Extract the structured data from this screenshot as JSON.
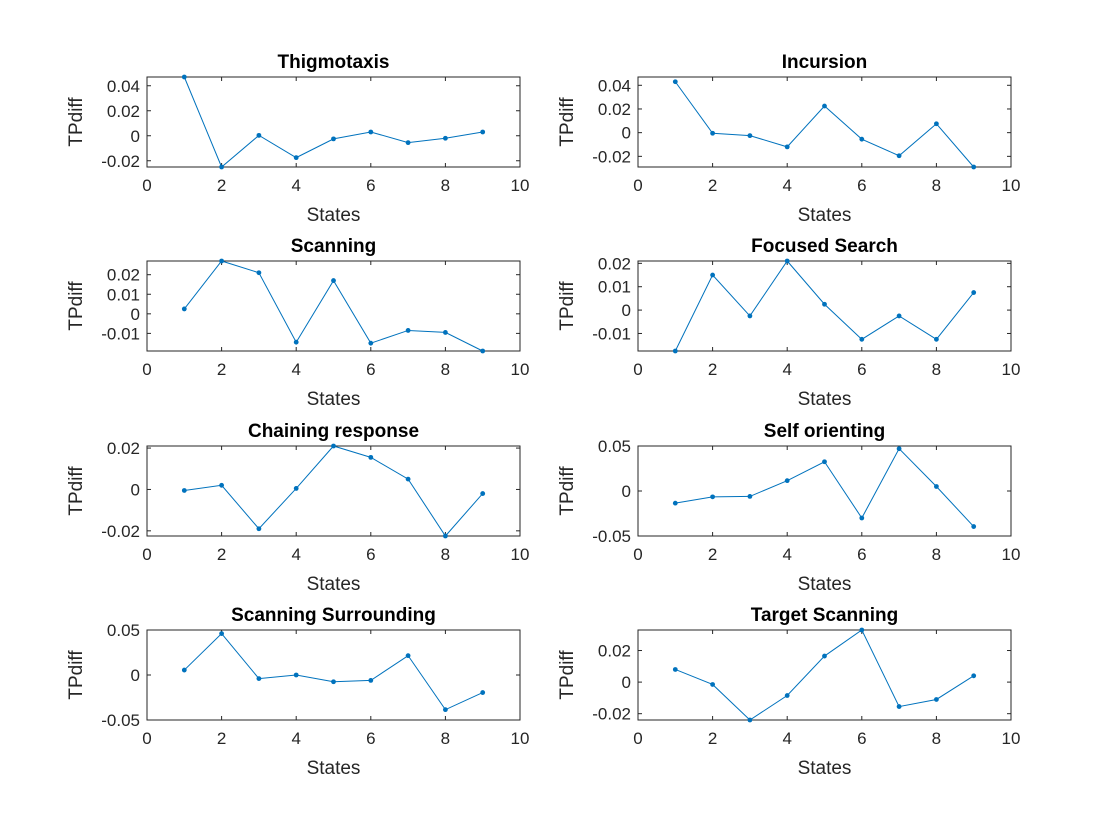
{
  "chart_data": [
    {
      "type": "line",
      "title": "Thigmotaxis",
      "xlabel": "States",
      "ylabel": "TPdiff",
      "xlim": [
        0,
        10
      ],
      "ylim": [
        -0.025,
        0.047
      ],
      "x_ticks": [
        0,
        2,
        4,
        6,
        8,
        10
      ],
      "y_ticks": [
        -0.02,
        0,
        0.02,
        0.04
      ],
      "x": [
        1,
        2,
        3,
        4,
        5,
        6,
        7,
        8,
        9
      ],
      "series": [
        {
          "values": [
            0.047,
            -0.025,
            0.0003,
            -0.0175,
            -0.0025,
            0.003,
            -0.0055,
            -0.002,
            0.003
          ]
        }
      ],
      "color": "#0072BD",
      "grid": false
    },
    {
      "type": "line",
      "title": "Incursion",
      "xlabel": "States",
      "ylabel": "TPdiff",
      "xlim": [
        0,
        10
      ],
      "ylim": [
        -0.029,
        0.047
      ],
      "x_ticks": [
        0,
        2,
        4,
        6,
        8,
        10
      ],
      "y_ticks": [
        -0.02,
        0,
        0.02,
        0.04
      ],
      "x": [
        1,
        2,
        3,
        4,
        5,
        6,
        7,
        8,
        9
      ],
      "series": [
        {
          "values": [
            0.043,
            -0.0005,
            -0.0025,
            -0.012,
            0.0225,
            -0.0055,
            -0.0195,
            0.0075,
            -0.029
          ]
        }
      ],
      "color": "#0072BD",
      "grid": false
    },
    {
      "type": "line",
      "title": "Scanning",
      "xlabel": "States",
      "ylabel": "TPdiff",
      "xlim": [
        0,
        10
      ],
      "ylim": [
        -0.019,
        0.027
      ],
      "x_ticks": [
        0,
        2,
        4,
        6,
        8,
        10
      ],
      "y_ticks": [
        -0.01,
        0,
        0.01,
        0.02
      ],
      "x": [
        1,
        2,
        3,
        4,
        5,
        6,
        7,
        8,
        9
      ],
      "series": [
        {
          "values": [
            0.0025,
            0.027,
            0.021,
            -0.0145,
            0.017,
            -0.015,
            -0.0085,
            -0.0095,
            -0.019
          ]
        }
      ],
      "color": "#0072BD",
      "grid": false
    },
    {
      "type": "line",
      "title": "Focused Search",
      "xlabel": "States",
      "ylabel": "TPdiff",
      "xlim": [
        0,
        10
      ],
      "ylim": [
        -0.0175,
        0.021
      ],
      "x_ticks": [
        0,
        2,
        4,
        6,
        8,
        10
      ],
      "y_ticks": [
        -0.01,
        0,
        0.01,
        0.02
      ],
      "x": [
        1,
        2,
        3,
        4,
        5,
        6,
        7,
        8,
        9
      ],
      "series": [
        {
          "values": [
            -0.0175,
            0.015,
            -0.0025,
            0.021,
            0.0025,
            -0.0125,
            -0.0025,
            -0.0125,
            0.0075
          ]
        }
      ],
      "color": "#0072BD",
      "grid": false
    },
    {
      "type": "line",
      "title": "Chaining response",
      "xlabel": "States",
      "ylabel": "TPdiff",
      "xlim": [
        0,
        10
      ],
      "ylim": [
        -0.0225,
        0.021
      ],
      "x_ticks": [
        0,
        2,
        4,
        6,
        8,
        10
      ],
      "y_ticks": [
        -0.02,
        0,
        0.02
      ],
      "x": [
        1,
        2,
        3,
        4,
        5,
        6,
        7,
        8,
        9
      ],
      "series": [
        {
          "values": [
            -0.0005,
            0.002,
            -0.019,
            0.0005,
            0.021,
            0.0155,
            0.005,
            -0.0225,
            -0.002
          ]
        }
      ],
      "color": "#0072BD",
      "grid": false
    },
    {
      "type": "line",
      "title": "Self orienting",
      "xlabel": "States",
      "ylabel": "TPdiff",
      "xlim": [
        0,
        10
      ],
      "ylim": [
        -0.05,
        0.05
      ],
      "x_ticks": [
        0,
        2,
        4,
        6,
        8,
        10
      ],
      "y_ticks": [
        -0.05,
        0,
        0.05
      ],
      "x": [
        1,
        2,
        3,
        4,
        5,
        6,
        7,
        8,
        9
      ],
      "series": [
        {
          "values": [
            -0.0135,
            -0.0065,
            -0.006,
            0.0115,
            0.0325,
            -0.03,
            0.047,
            0.005,
            -0.0395
          ]
        }
      ],
      "color": "#0072BD",
      "grid": false
    },
    {
      "type": "line",
      "title": "Scanning Surrounding",
      "xlabel": "States",
      "ylabel": "TPdiff",
      "xlim": [
        0,
        10
      ],
      "ylim": [
        -0.05,
        0.05
      ],
      "x_ticks": [
        0,
        2,
        4,
        6,
        8,
        10
      ],
      "y_ticks": [
        -0.05,
        0,
        0.05
      ],
      "x": [
        1,
        2,
        3,
        4,
        5,
        6,
        7,
        8,
        9
      ],
      "series": [
        {
          "values": [
            0.0055,
            0.046,
            -0.004,
            0.0,
            -0.0075,
            -0.006,
            0.0215,
            -0.0385,
            -0.0195
          ]
        }
      ],
      "color": "#0072BD",
      "grid": false
    },
    {
      "type": "line",
      "title": "Target Scanning",
      "xlabel": "States",
      "ylabel": "TPdiff",
      "xlim": [
        0,
        10
      ],
      "ylim": [
        -0.024,
        0.033
      ],
      "x_ticks": [
        0,
        2,
        4,
        6,
        8,
        10
      ],
      "y_ticks": [
        -0.02,
        0,
        0.02
      ],
      "x": [
        1,
        2,
        3,
        4,
        5,
        6,
        7,
        8,
        9
      ],
      "series": [
        {
          "values": [
            0.008,
            -0.0015,
            -0.024,
            -0.0085,
            0.0165,
            0.033,
            -0.0155,
            -0.011,
            0.004
          ]
        }
      ],
      "color": "#0072BD",
      "grid": false
    }
  ]
}
